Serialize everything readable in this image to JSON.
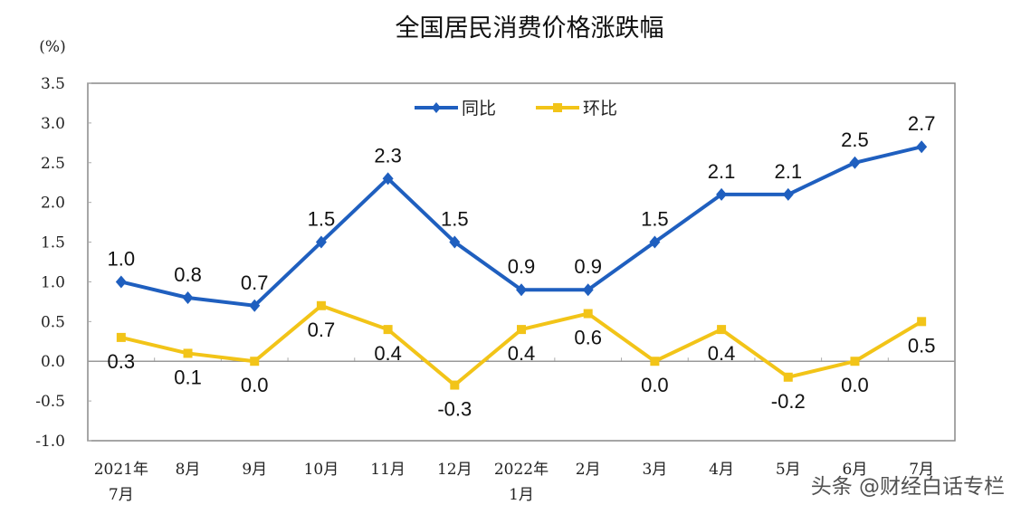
{
  "chart_data": {
    "type": "line",
    "title": "全国居民消费价格涨跌幅",
    "ylabel": "(%)",
    "ylim": [
      -1.0,
      3.5
    ],
    "yticks": [
      "3.5",
      "3.0",
      "2.5",
      "2.0",
      "1.5",
      "1.0",
      "0.5",
      "0.0",
      "-0.5",
      "-1.0"
    ],
    "categories": [
      [
        "2021年",
        "7月"
      ],
      [
        "8月"
      ],
      [
        "9月"
      ],
      [
        "10月"
      ],
      [
        "11月"
      ],
      [
        "12月"
      ],
      [
        "2022年",
        "1月"
      ],
      [
        "2月"
      ],
      [
        "3月"
      ],
      [
        "4月"
      ],
      [
        "5月"
      ],
      [
        "6月"
      ],
      [
        "7月"
      ]
    ],
    "legend_position": "top-center",
    "grid": false,
    "series": [
      {
        "name": "同比",
        "color": "#1f5fbf",
        "marker": "diamond",
        "values": [
          1.0,
          0.8,
          0.7,
          1.5,
          2.3,
          1.5,
          0.9,
          0.9,
          1.5,
          2.1,
          2.1,
          2.5,
          2.7
        ],
        "labels": [
          "1.0",
          "0.8",
          "0.7",
          "1.5",
          "2.3",
          "1.5",
          "0.9",
          "0.9",
          "1.5",
          "2.1",
          "2.1",
          "2.5",
          "2.7"
        ]
      },
      {
        "name": "环比",
        "color": "#f2c418",
        "marker": "square",
        "values": [
          0.3,
          0.1,
          0.0,
          0.7,
          0.4,
          -0.3,
          0.4,
          0.6,
          0.0,
          0.4,
          -0.2,
          0.0,
          0.5
        ],
        "labels": [
          "0.3",
          "0.1",
          "0.0",
          "0.7",
          "0.4",
          "-0.3",
          "0.4",
          "0.6",
          "0.0",
          "0.4",
          "-0.2",
          "0.0",
          "0.5"
        ]
      }
    ]
  },
  "watermark": "头条 @财经白话专栏"
}
